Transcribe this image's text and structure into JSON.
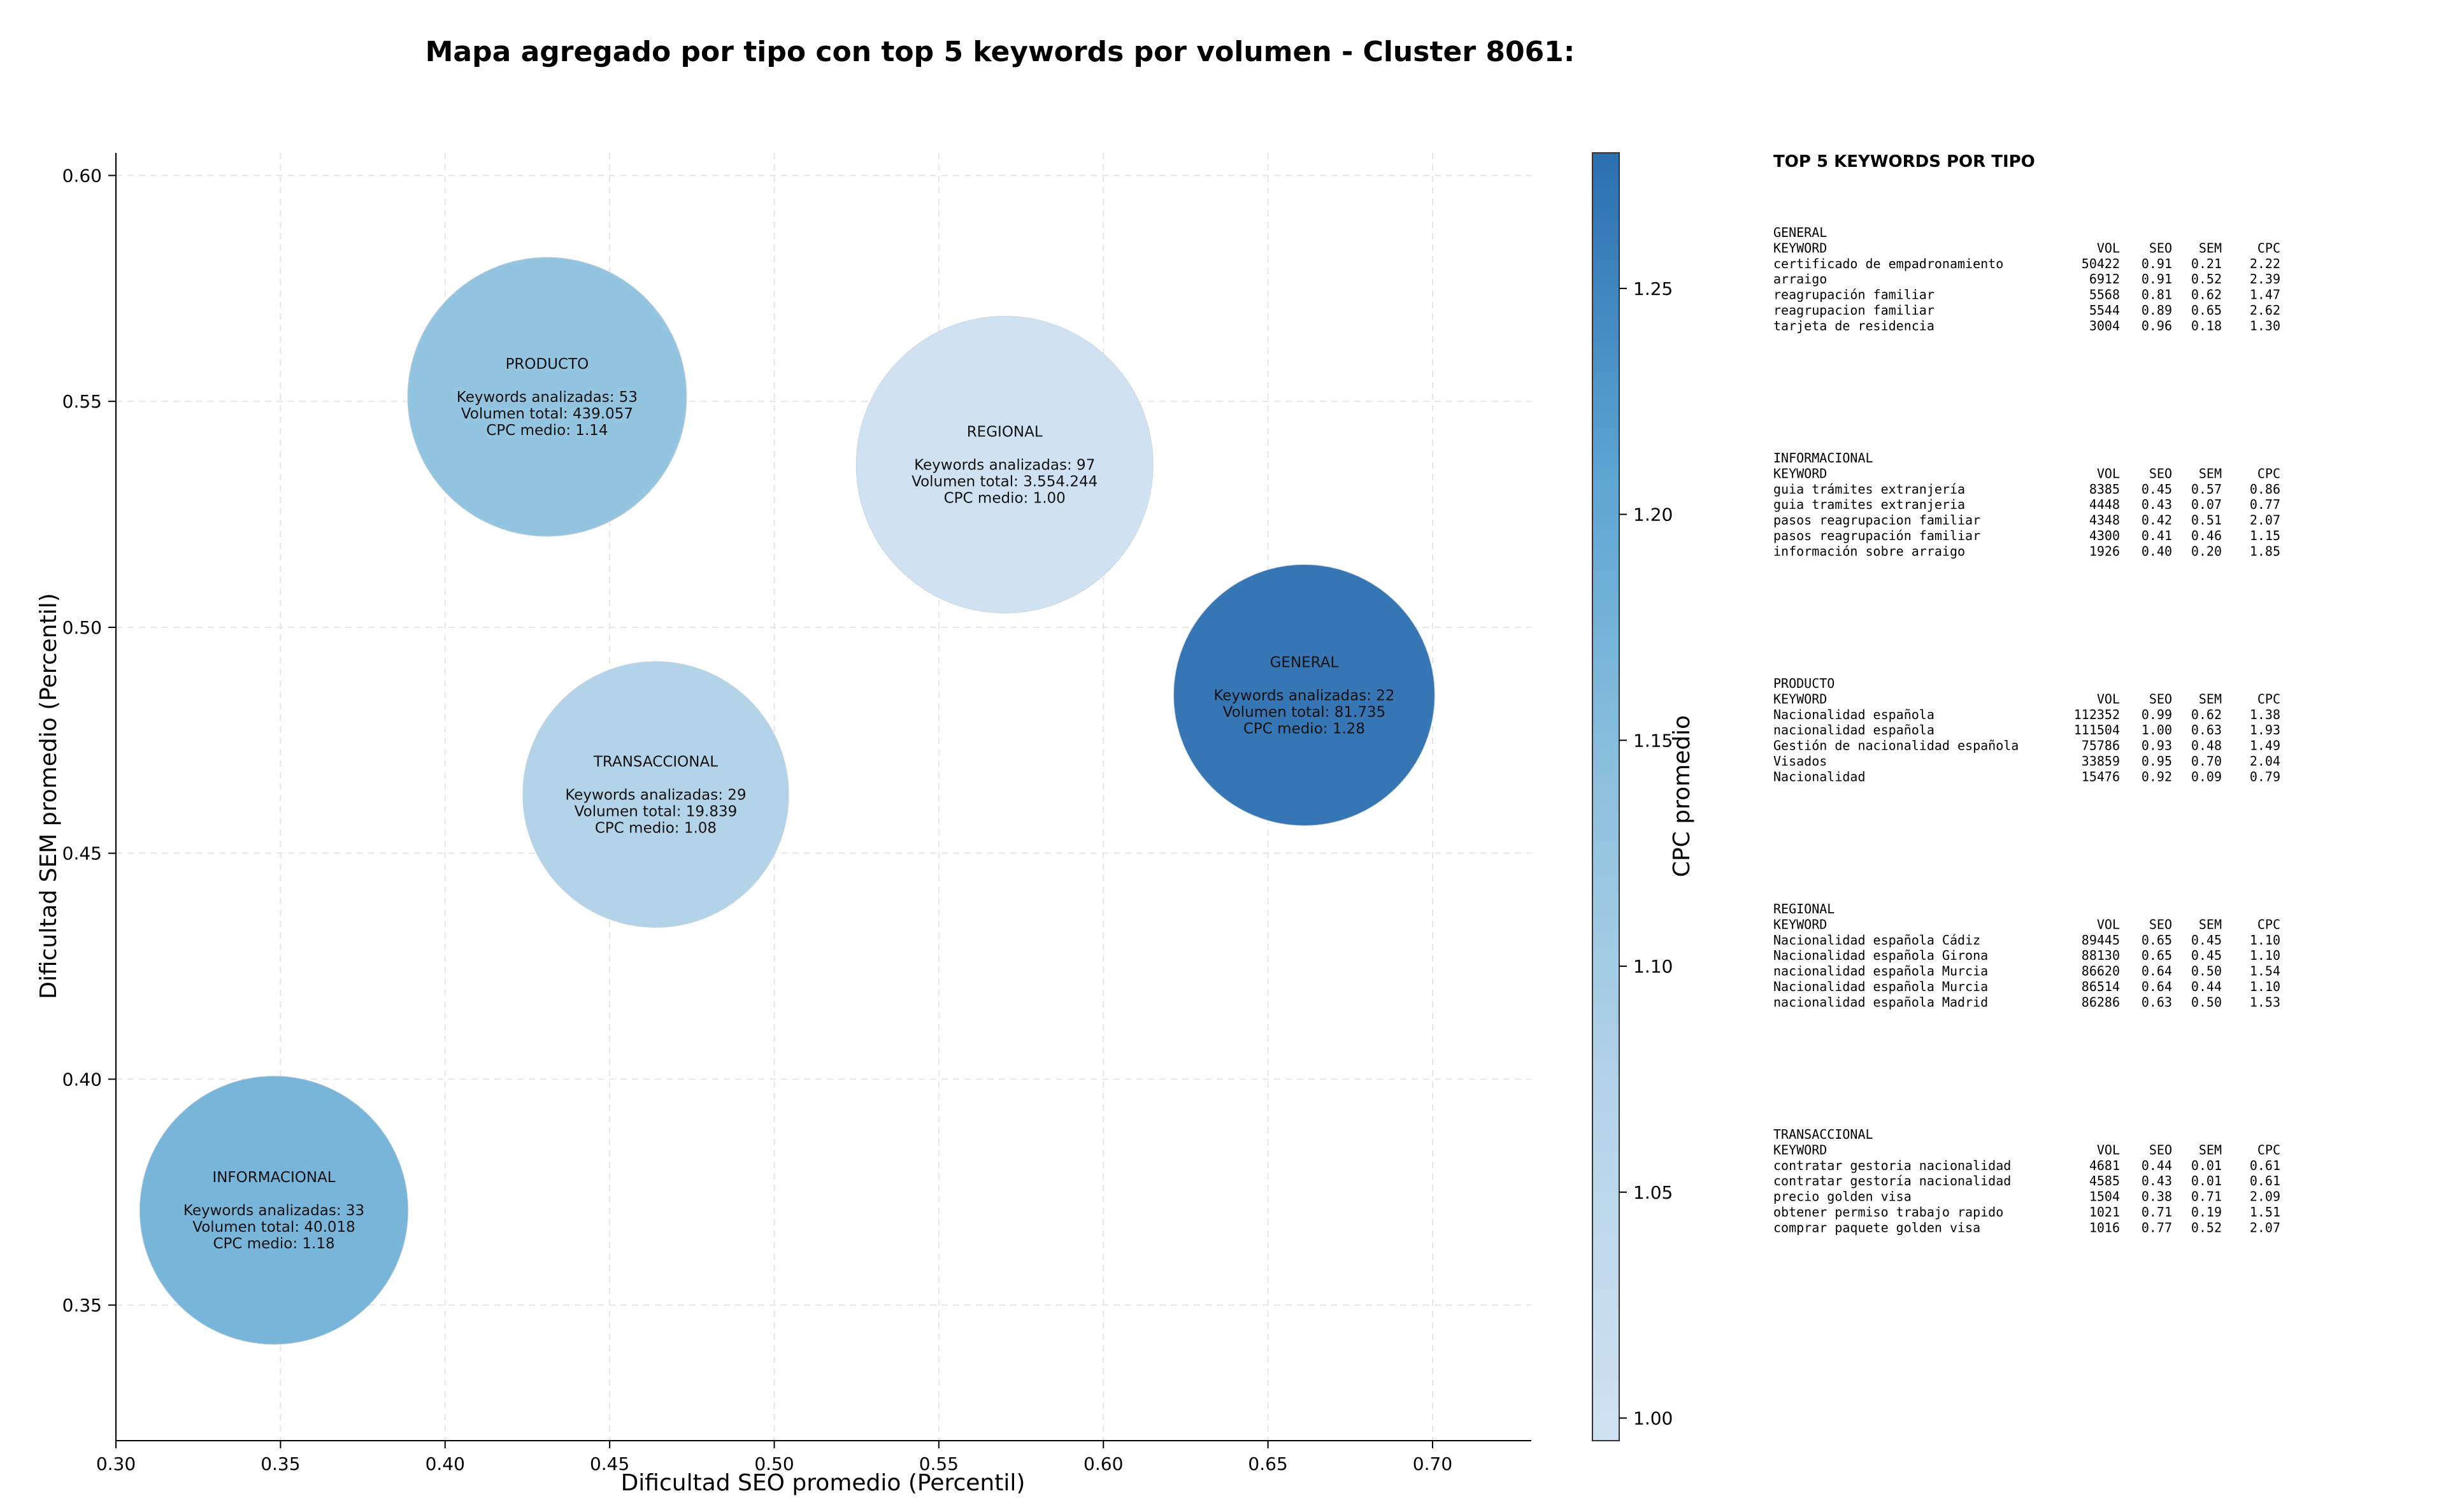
{
  "chart_data": {
    "type": "scatter",
    "title": "Mapa agregado por tipo con top 5 keywords por volumen - Cluster 8061:",
    "xlabel": "Dificultad SEO promedio (Percentil)",
    "ylabel": "Dificultad SEM promedio (Percentil)",
    "xlim": [
      0.3,
      0.73
    ],
    "ylim": [
      0.32,
      0.605
    ],
    "x_ticks": [
      "0.30",
      "0.35",
      "0.40",
      "0.45",
      "0.50",
      "0.55",
      "0.60",
      "0.65",
      "0.70"
    ],
    "y_ticks": [
      "0.35",
      "0.40",
      "0.45",
      "0.50",
      "0.55",
      "0.60"
    ],
    "grid": true,
    "colorbar": {
      "label": "CPC promedio",
      "min": 0.995,
      "max": 1.28,
      "ticks": [
        "1.00",
        "1.05",
        "1.10",
        "1.15",
        "1.20",
        "1.25"
      ],
      "colors": [
        "#d0e1f2",
        "#2b6fb0"
      ]
    },
    "points": [
      {
        "name": "PRODUCTO",
        "x": 0.431,
        "y": 0.551,
        "keywords": 53,
        "volume": "439.057",
        "cpc": 1.14,
        "lines": [
          "PRODUCTO",
          "",
          "Keywords analizadas: 53",
          "Volumen total: 439.057",
          "CPC medio: 1.14"
        ]
      },
      {
        "name": "REGIONAL",
        "x": 0.57,
        "y": 0.536,
        "keywords": 97,
        "volume": "3.554.244",
        "cpc": 1.0,
        "lines": [
          "REGIONAL",
          "",
          "Keywords analizadas: 97",
          "Volumen total: 3.554.244",
          "CPC medio: 1.00"
        ]
      },
      {
        "name": "GENERAL",
        "x": 0.661,
        "y": 0.485,
        "keywords": 22,
        "volume": "81.735",
        "cpc": 1.28,
        "lines": [
          "GENERAL",
          "",
          "Keywords analizadas: 22",
          "Volumen total: 81.735",
          "CPC medio: 1.28"
        ]
      },
      {
        "name": "TRANSACCIONAL",
        "x": 0.464,
        "y": 0.463,
        "keywords": 29,
        "volume": "19.839",
        "cpc": 1.08,
        "lines": [
          "TRANSACCIONAL",
          "",
          "Keywords analizadas: 29",
          "Volumen total: 19.839",
          "CPC medio: 1.08"
        ]
      },
      {
        "name": "INFORMACIONAL",
        "x": 0.348,
        "y": 0.371,
        "keywords": 33,
        "volume": "40.018",
        "cpc": 1.18,
        "lines": [
          "INFORMACIONAL",
          "",
          "Keywords analizadas: 33",
          "Volumen total: 40.018",
          "CPC medio: 1.18"
        ]
      }
    ],
    "side_panel": {
      "title": "TOP 5 KEYWORDS POR TIPO",
      "header": [
        "KEYWORD",
        "VOL",
        "SEO",
        "SEM",
        "CPC"
      ],
      "groups": [
        {
          "name": "GENERAL",
          "rows": [
            [
              "certificado de empadronamiento",
              "50422",
              "0.91",
              "0.21",
              "2.22"
            ],
            [
              "arraigo",
              "6912",
              "0.91",
              "0.52",
              "2.39"
            ],
            [
              "reagrupación familiar",
              "5568",
              "0.81",
              "0.62",
              "1.47"
            ],
            [
              "reagrupacion familiar",
              "5544",
              "0.89",
              "0.65",
              "2.62"
            ],
            [
              "tarjeta de residencia",
              "3004",
              "0.96",
              "0.18",
              "1.30"
            ]
          ]
        },
        {
          "name": "INFORMACIONAL",
          "rows": [
            [
              "guia trámites extranjería",
              "8385",
              "0.45",
              "0.57",
              "0.86"
            ],
            [
              "guia tramites extranjeria",
              "4448",
              "0.43",
              "0.07",
              "0.77"
            ],
            [
              "pasos reagrupacion familiar",
              "4348",
              "0.42",
              "0.51",
              "2.07"
            ],
            [
              "pasos reagrupación familiar",
              "4300",
              "0.41",
              "0.46",
              "1.15"
            ],
            [
              "información sobre arraigo",
              "1926",
              "0.40",
              "0.20",
              "1.85"
            ]
          ]
        },
        {
          "name": "PRODUCTO",
          "rows": [
            [
              "Nacionalidad española",
              "112352",
              "0.99",
              "0.62",
              "1.38"
            ],
            [
              "nacionalidad española",
              "111504",
              "1.00",
              "0.63",
              "1.93"
            ],
            [
              "Gestión de nacionalidad española",
              "75786",
              "0.93",
              "0.48",
              "1.49"
            ],
            [
              "Visados",
              "33859",
              "0.95",
              "0.70",
              "2.04"
            ],
            [
              "Nacionalidad",
              "15476",
              "0.92",
              "0.09",
              "0.79"
            ]
          ]
        },
        {
          "name": "REGIONAL",
          "rows": [
            [
              "Nacionalidad española Cádiz",
              "89445",
              "0.65",
              "0.45",
              "1.10"
            ],
            [
              "Nacionalidad española Girona",
              "88130",
              "0.65",
              "0.45",
              "1.10"
            ],
            [
              "nacionalidad española Murcia",
              "86620",
              "0.64",
              "0.50",
              "1.54"
            ],
            [
              "Nacionalidad española Murcia",
              "86514",
              "0.64",
              "0.44",
              "1.10"
            ],
            [
              "nacionalidad española Madrid",
              "86286",
              "0.63",
              "0.50",
              "1.53"
            ]
          ]
        },
        {
          "name": "TRANSACCIONAL",
          "rows": [
            [
              "contratar gestoria nacionalidad",
              "4681",
              "0.44",
              "0.01",
              "0.61"
            ],
            [
              "contratar gestoría nacionalidad",
              "4585",
              "0.43",
              "0.01",
              "0.61"
            ],
            [
              "precio golden visa",
              "1504",
              "0.38",
              "0.71",
              "2.09"
            ],
            [
              "obtener permiso trabajo rapido",
              "1021",
              "0.71",
              "0.19",
              "1.51"
            ],
            [
              "comprar paquete golden visa",
              "1016",
              "0.77",
              "0.52",
              "2.07"
            ]
          ]
        }
      ]
    }
  }
}
